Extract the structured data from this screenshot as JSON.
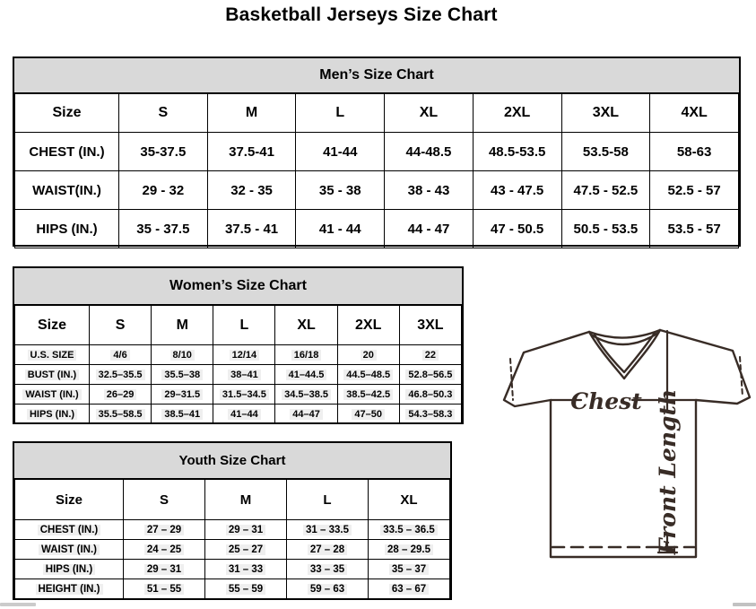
{
  "page_title": "Basketball Jerseys Size Chart",
  "mens_chart": {
    "title": "Men’s Size Chart",
    "columns": [
      "Size",
      "S",
      "M",
      "L",
      "XL",
      "2XL",
      "3XL",
      "4XL"
    ],
    "rows": [
      {
        "label": "CHEST (IN.)",
        "values": [
          "35-37.5",
          "37.5-41",
          "41-44",
          "44-48.5",
          "48.5-53.5",
          "53.5-58",
          "58-63"
        ]
      },
      {
        "label": "WAIST(IN.)",
        "values": [
          "29 - 32",
          "32 - 35",
          "35 - 38",
          "38 - 43",
          "43 - 47.5",
          "47.5 - 52.5",
          "52.5 - 57"
        ]
      },
      {
        "label": "HIPS (IN.)",
        "values": [
          "35 - 37.5",
          "37.5 - 41",
          "41 - 44",
          "44 - 47",
          "47 - 50.5",
          "50.5 - 53.5",
          "53.5 - 57"
        ]
      }
    ]
  },
  "womens_chart": {
    "title": "Women’s Size Chart",
    "columns": [
      "Size",
      "S",
      "M",
      "L",
      "XL",
      "2XL",
      "3XL"
    ],
    "rows": [
      {
        "label": "U.S. SIZE",
        "values": [
          "4/6",
          "8/10",
          "12/14",
          "16/18",
          "20",
          "22"
        ]
      },
      {
        "label": "BUST (IN.)",
        "values": [
          "32.5–35.5",
          "35.5–38",
          "38–41",
          "41–44.5",
          "44.5–48.5",
          "52.8–56.5"
        ]
      },
      {
        "label": "WAIST (IN.)",
        "values": [
          "26–29",
          "29–31.5",
          "31.5–34.5",
          "34.5–38.5",
          "38.5–42.5",
          "46.8–50.3"
        ]
      },
      {
        "label": "HIPS (IN.)",
        "values": [
          "35.5–58.5",
          "38.5–41",
          "41–44",
          "44–47",
          "47–50",
          "54.3–58.3"
        ]
      }
    ]
  },
  "youth_chart": {
    "title": "Youth Size Chart",
    "columns": [
      "Size",
      "S",
      "M",
      "L",
      "XL"
    ],
    "rows": [
      {
        "label": "CHEST (IN.)",
        "values": [
          "27 – 29",
          "29 – 31",
          "31 – 33.5",
          "33.5 – 36.5"
        ]
      },
      {
        "label": "WAIST (IN.)",
        "values": [
          "24 – 25",
          "25 – 27",
          "27 – 28",
          "28 – 29.5"
        ]
      },
      {
        "label": "HIPS (IN.)",
        "values": [
          "29 – 31",
          "31 – 33",
          "33 – 35",
          "35 – 37"
        ]
      },
      {
        "label": "HEIGHT (IN.)",
        "values": [
          "51 – 55",
          "55 – 59",
          "59 – 63",
          "63 – 67"
        ]
      }
    ]
  },
  "diagram": {
    "chest_label": "Chest",
    "front_length_label": "Front Length"
  },
  "colors": {
    "table_header_bg": "#d9d9d9",
    "table_border": "#000000",
    "diagram_line": "#382c26",
    "scrollbar_fragment": "#cbcbcb"
  }
}
